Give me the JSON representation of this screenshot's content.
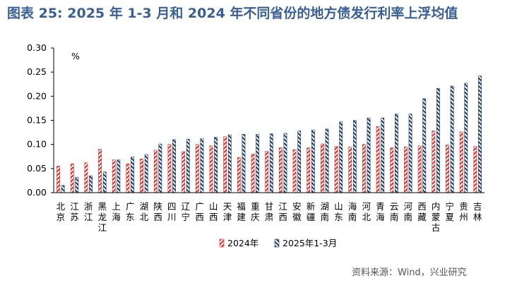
{
  "title": "图表 25:    2025 年 1-3 月和 2024 年不同省份的地方债发行利率上浮均值",
  "source": "资料来源：Wind，兴业研究",
  "colors": {
    "title": "#3a5f94",
    "series_2024": "#d9302b",
    "series_2025": "#1f3b66"
  },
  "chart_data": {
    "type": "bar",
    "unit_label": "%",
    "ylim": [
      0,
      0.3
    ],
    "yticks": [
      "0.00",
      "0.05",
      "0.10",
      "0.15",
      "0.20",
      "0.25",
      "0.30"
    ],
    "grid": false,
    "legend_position": "bottom",
    "categories": [
      "北京",
      "江苏",
      "浙江",
      "黑龙江",
      "上海",
      "广东",
      "湖北",
      "陕西",
      "四川",
      "辽宁",
      "广西",
      "山西",
      "天津",
      "福建",
      "重庆",
      "甘肃",
      "江西",
      "安徽",
      "新疆",
      "湖南",
      "山东",
      "海南",
      "河北",
      "青海",
      "云南",
      "河南",
      "西藏",
      "内蒙古",
      "宁夏",
      "贵州",
      "吉林"
    ],
    "series": [
      {
        "name": "2024年",
        "values": [
          0.055,
          0.06,
          0.062,
          0.09,
          0.068,
          0.06,
          0.07,
          0.088,
          0.1,
          0.085,
          0.1,
          0.097,
          0.116,
          0.073,
          0.08,
          0.086,
          0.093,
          0.089,
          0.093,
          0.101,
          0.096,
          0.095,
          0.1,
          0.137,
          0.093,
          0.095,
          0.097,
          0.128,
          0.099,
          0.126,
          0.096
        ]
      },
      {
        "name": "2025年1-3月",
        "values": [
          0.015,
          0.032,
          0.035,
          0.043,
          0.068,
          0.074,
          0.079,
          0.101,
          0.11,
          0.111,
          0.112,
          0.115,
          0.12,
          0.121,
          0.121,
          0.122,
          0.123,
          0.128,
          0.13,
          0.132,
          0.147,
          0.15,
          0.155,
          0.155,
          0.163,
          0.163,
          0.195,
          0.216,
          0.221,
          0.227,
          0.242
        ]
      }
    ]
  }
}
